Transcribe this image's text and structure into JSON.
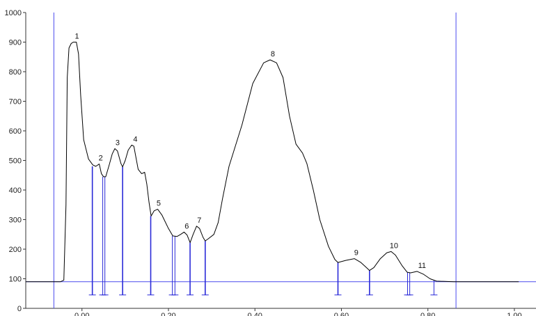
{
  "chart_data": {
    "type": "line",
    "title": "",
    "xlabel": "",
    "ylabel": "",
    "xlim": [
      -0.13,
      1.05
    ],
    "ylim": [
      0,
      1000
    ],
    "x_ticks": [
      0.0,
      0.2,
      0.4,
      0.6,
      0.8,
      1.0
    ],
    "x_tick_labels": [
      "0.00",
      "0.20",
      "0.40",
      "0.60",
      "0.80",
      "1.00"
    ],
    "y_ticks": [
      0,
      100,
      200,
      300,
      400,
      500,
      600,
      700,
      800,
      900,
      1000
    ],
    "y_tick_labels": [
      "0",
      "100",
      "200",
      "300",
      "400",
      "500",
      "600",
      "700",
      "800",
      "900",
      "1000"
    ],
    "baseline_y": 90,
    "boundary_lines_x": [
      -0.065,
      0.865
    ],
    "trace": [
      [
        -0.13,
        90
      ],
      [
        -0.05,
        90
      ],
      [
        -0.042,
        95
      ],
      [
        -0.037,
        350
      ],
      [
        -0.034,
        780
      ],
      [
        -0.03,
        880
      ],
      [
        -0.025,
        895
      ],
      [
        -0.02,
        900
      ],
      [
        -0.013,
        900
      ],
      [
        -0.008,
        860
      ],
      [
        -0.003,
        720
      ],
      [
        0.004,
        570
      ],
      [
        0.015,
        505
      ],
      [
        0.025,
        485
      ],
      [
        0.032,
        480
      ],
      [
        0.04,
        488
      ],
      [
        0.045,
        455
      ],
      [
        0.05,
        445
      ],
      [
        0.055,
        445
      ],
      [
        0.063,
        485
      ],
      [
        0.07,
        522
      ],
      [
        0.076,
        540
      ],
      [
        0.082,
        532
      ],
      [
        0.09,
        490
      ],
      [
        0.094,
        478
      ],
      [
        0.1,
        500
      ],
      [
        0.107,
        535
      ],
      [
        0.115,
        552
      ],
      [
        0.12,
        548
      ],
      [
        0.13,
        470
      ],
      [
        0.138,
        455
      ],
      [
        0.145,
        460
      ],
      [
        0.15,
        420
      ],
      [
        0.155,
        360
      ],
      [
        0.16,
        312
      ],
      [
        0.167,
        330
      ],
      [
        0.175,
        335
      ],
      [
        0.185,
        315
      ],
      [
        0.2,
        270
      ],
      [
        0.21,
        245
      ],
      [
        0.22,
        243
      ],
      [
        0.228,
        250
      ],
      [
        0.236,
        258
      ],
      [
        0.243,
        248
      ],
      [
        0.25,
        222
      ],
      [
        0.257,
        250
      ],
      [
        0.265,
        278
      ],
      [
        0.272,
        270
      ],
      [
        0.28,
        240
      ],
      [
        0.285,
        228
      ],
      [
        0.292,
        235
      ],
      [
        0.305,
        250
      ],
      [
        0.315,
        290
      ],
      [
        0.325,
        370
      ],
      [
        0.34,
        480
      ],
      [
        0.37,
        620
      ],
      [
        0.395,
        760
      ],
      [
        0.42,
        830
      ],
      [
        0.435,
        840
      ],
      [
        0.45,
        830
      ],
      [
        0.465,
        780
      ],
      [
        0.48,
        650
      ],
      [
        0.495,
        555
      ],
      [
        0.51,
        525
      ],
      [
        0.52,
        490
      ],
      [
        0.535,
        400
      ],
      [
        0.55,
        300
      ],
      [
        0.57,
        210
      ],
      [
        0.585,
        165
      ],
      [
        0.592,
        155
      ],
      [
        0.61,
        162
      ],
      [
        0.63,
        168
      ],
      [
        0.645,
        155
      ],
      [
        0.66,
        135
      ],
      [
        0.665,
        128
      ],
      [
        0.675,
        138
      ],
      [
        0.69,
        168
      ],
      [
        0.705,
        188
      ],
      [
        0.715,
        192
      ],
      [
        0.725,
        180
      ],
      [
        0.74,
        145
      ],
      [
        0.752,
        122
      ],
      [
        0.76,
        120
      ],
      [
        0.775,
        125
      ],
      [
        0.79,
        115
      ],
      [
        0.805,
        100
      ],
      [
        0.82,
        92
      ],
      [
        0.86,
        90
      ],
      [
        1.01,
        90
      ]
    ],
    "peaks": [
      {
        "label": "1",
        "x": -0.018,
        "y": 900
      },
      {
        "label": "2",
        "x": 0.037,
        "y": 488
      },
      {
        "label": "3",
        "x": 0.076,
        "y": 540
      },
      {
        "label": "4",
        "x": 0.117,
        "y": 552
      },
      {
        "label": "5",
        "x": 0.171,
        "y": 335
      },
      {
        "label": "6",
        "x": 0.236,
        "y": 258
      },
      {
        "label": "7",
        "x": 0.265,
        "y": 278
      },
      {
        "label": "8",
        "x": 0.435,
        "y": 840
      },
      {
        "label": "9",
        "x": 0.628,
        "y": 168
      },
      {
        "label": "10",
        "x": 0.715,
        "y": 192
      },
      {
        "label": "11",
        "x": 0.78,
        "y": 125
      }
    ],
    "drop_lines": [
      {
        "x": 0.024,
        "y": 480,
        "style": "heavy"
      },
      {
        "x": 0.048,
        "y": 445,
        "style": "bracket"
      },
      {
        "x": 0.053,
        "y": 445,
        "style": "bracket"
      },
      {
        "x": 0.094,
        "y": 478,
        "style": "heavy"
      },
      {
        "x": 0.159,
        "y": 312,
        "style": "heavy"
      },
      {
        "x": 0.209,
        "y": 245,
        "style": "bracket"
      },
      {
        "x": 0.215,
        "y": 243,
        "style": "bracket"
      },
      {
        "x": 0.25,
        "y": 222,
        "style": "heavy"
      },
      {
        "x": 0.285,
        "y": 228,
        "style": "heavy"
      },
      {
        "x": 0.592,
        "y": 155,
        "style": "heavy"
      },
      {
        "x": 0.665,
        "y": 128,
        "style": "heavy"
      },
      {
        "x": 0.753,
        "y": 122,
        "style": "bracket"
      },
      {
        "x": 0.758,
        "y": 120,
        "style": "bracket"
      },
      {
        "x": 0.814,
        "y": 96,
        "style": "bracket"
      }
    ],
    "colors": {
      "trace": "#000000",
      "marker": "#2a2ad8",
      "baseline": "#4a4aee",
      "axis": "#333333"
    }
  }
}
